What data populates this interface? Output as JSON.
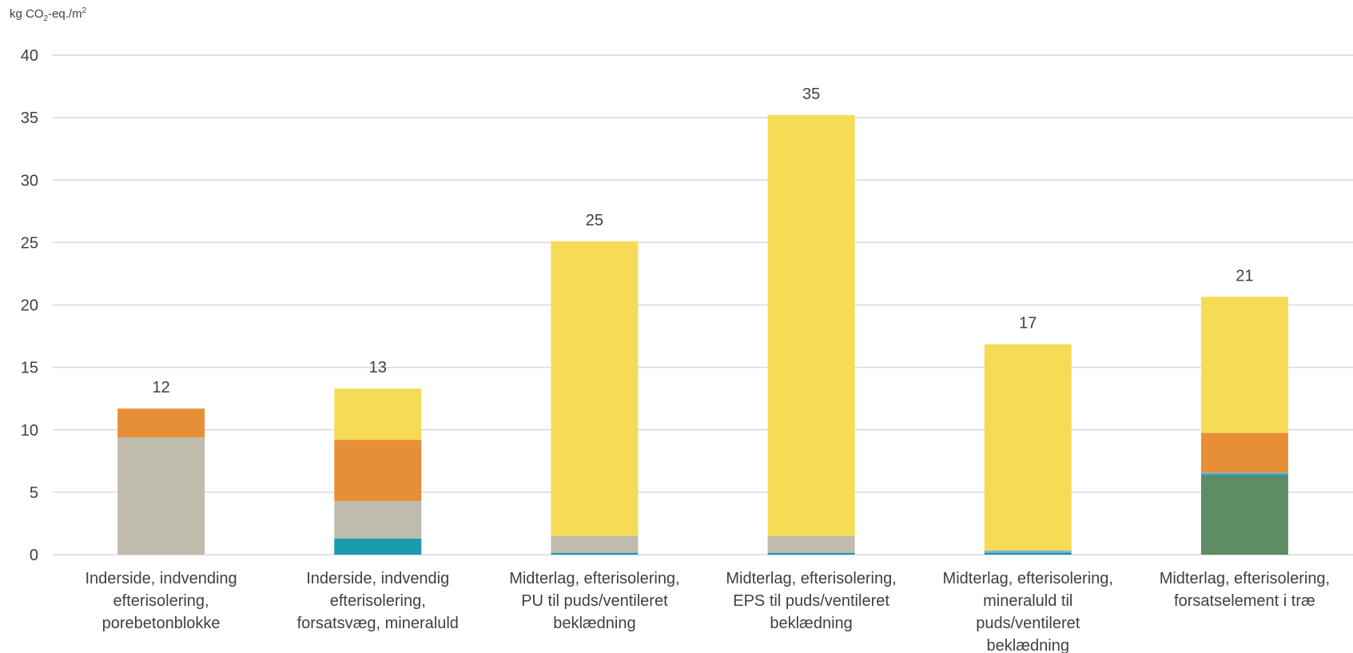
{
  "chart_data": {
    "type": "bar",
    "stacked": true,
    "ylabel_parts": {
      "pre": "kg CO",
      "sub": "2",
      "mid": "-eq./m",
      "sup": "2"
    },
    "ylim": [
      0,
      40
    ],
    "yticks": [
      "0",
      "5",
      "10",
      "15",
      "20",
      "25",
      "30",
      "35",
      "40"
    ],
    "grid": true,
    "categories": [
      [
        "Inderside, indvending",
        "efterisolering,",
        "porebetonblokke"
      ],
      [
        "Inderside, indvendig",
        "efterisolering,",
        "forsatsvæg, mineraluld"
      ],
      [
        "Midterlag, efterisolering,",
        "PU til puds/ventileret",
        "beklædning"
      ],
      [
        "Midterlag, efterisolering,",
        "EPS til puds/ventileret",
        "beklædning"
      ],
      [
        "Midterlag, efterisolering,",
        "mineraluld til",
        "puds/ventileret",
        "beklædning"
      ],
      [
        "Midterlag, efterisolering,",
        "forsatselement i træ"
      ]
    ],
    "totals": [
      "12",
      "13",
      "25",
      "35",
      "17",
      "21"
    ],
    "series": [
      {
        "color": "#5e8c64",
        "values": [
          0,
          0,
          0,
          0,
          0,
          6.3
        ]
      },
      {
        "color": "#1a9aad",
        "values": [
          0,
          1.3,
          0.15,
          0.15,
          0.15,
          0.15
        ]
      },
      {
        "color": "#6aaed6",
        "values": [
          0,
          0,
          0,
          0,
          0.15,
          0.1
        ]
      },
      {
        "color": "#bfbcad",
        "values": [
          9.4,
          3.0,
          1.35,
          1.35,
          0.05,
          0
        ]
      },
      {
        "color": "#e68f36",
        "values": [
          2.3,
          4.9,
          0,
          0,
          0,
          3.2
        ]
      },
      {
        "color": "#f6db57",
        "values": [
          0,
          4.1,
          23.6,
          33.7,
          16.5,
          10.9
        ]
      }
    ]
  }
}
